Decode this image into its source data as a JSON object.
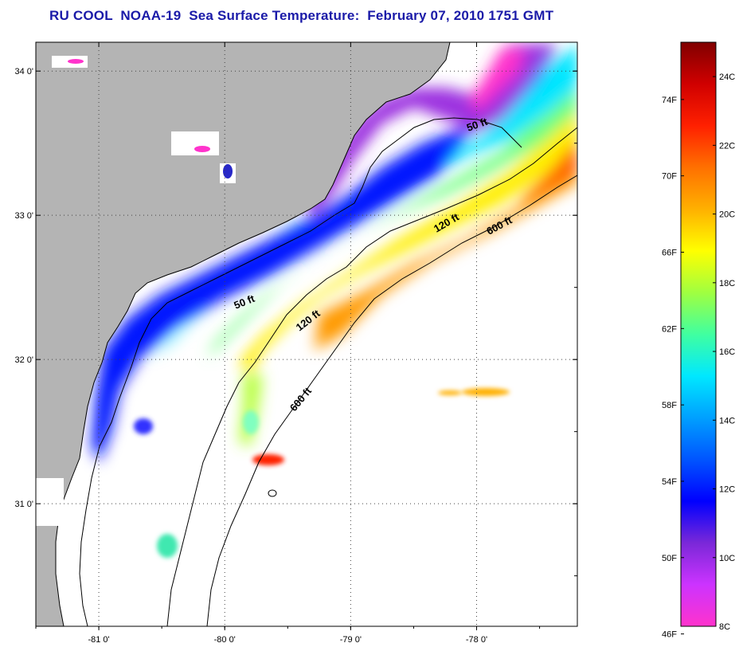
{
  "title": "RU COOL  NOAA-19  Sea Surface Temperature:  February 07, 2010 1751 GMT",
  "map": {
    "lon_range": [
      -81.5,
      -77.2
    ],
    "lat_range": [
      30.15,
      34.2
    ],
    "lon_ticks": [
      {
        "value": -81,
        "label": "-81 0'"
      },
      {
        "value": -80,
        "label": "-80 0'"
      },
      {
        "value": -79,
        "label": "-79 0'"
      },
      {
        "value": -78,
        "label": "-78 0'"
      }
    ],
    "lat_ticks": [
      {
        "value": 34,
        "label": "34 0'"
      },
      {
        "value": 33,
        "label": "33 0'"
      },
      {
        "value": 32,
        "label": "32 0'"
      },
      {
        "value": 31,
        "label": "31 0'"
      }
    ],
    "contour_labels": [
      {
        "text": "50 ft"
      },
      {
        "text": "50 ft"
      },
      {
        "text": "120 ft"
      },
      {
        "text": "120 ft"
      },
      {
        "text": "600 ft"
      },
      {
        "text": "600 ft"
      }
    ],
    "colors": {
      "land": "#b4b4b4",
      "no_data": "#ffffff",
      "coastline": "#000000"
    }
  },
  "colorbar": {
    "range_c": [
      8,
      25
    ],
    "celsius_labels": [
      {
        "value": 24,
        "label": "24C"
      },
      {
        "value": 22,
        "label": "22C"
      },
      {
        "value": 20,
        "label": "20C"
      },
      {
        "value": 18,
        "label": "18C"
      },
      {
        "value": 16,
        "label": "16C"
      },
      {
        "value": 14,
        "label": "14C"
      },
      {
        "value": 12,
        "label": "12C"
      },
      {
        "value": 10,
        "label": "10C"
      },
      {
        "value": 8,
        "label": "8C"
      }
    ],
    "fahrenheit_labels": [
      {
        "value": 74,
        "label": "74F"
      },
      {
        "value": 70,
        "label": "70F"
      },
      {
        "value": 66,
        "label": "66F"
      },
      {
        "value": 62,
        "label": "62F"
      },
      {
        "value": 58,
        "label": "58F"
      },
      {
        "value": 54,
        "label": "54F"
      },
      {
        "value": 50,
        "label": "50F"
      },
      {
        "value": 46,
        "label": "46F"
      }
    ],
    "color_stops": [
      "#ff33cc",
      "#cc33ff",
      "#7a28d8",
      "#0000ff",
      "#0055ff",
      "#00a0ff",
      "#00e8ff",
      "#40ffa0",
      "#a0ff40",
      "#ffff00",
      "#ffb000",
      "#ff7000",
      "#ff2000",
      "#d00000",
      "#800000"
    ]
  }
}
